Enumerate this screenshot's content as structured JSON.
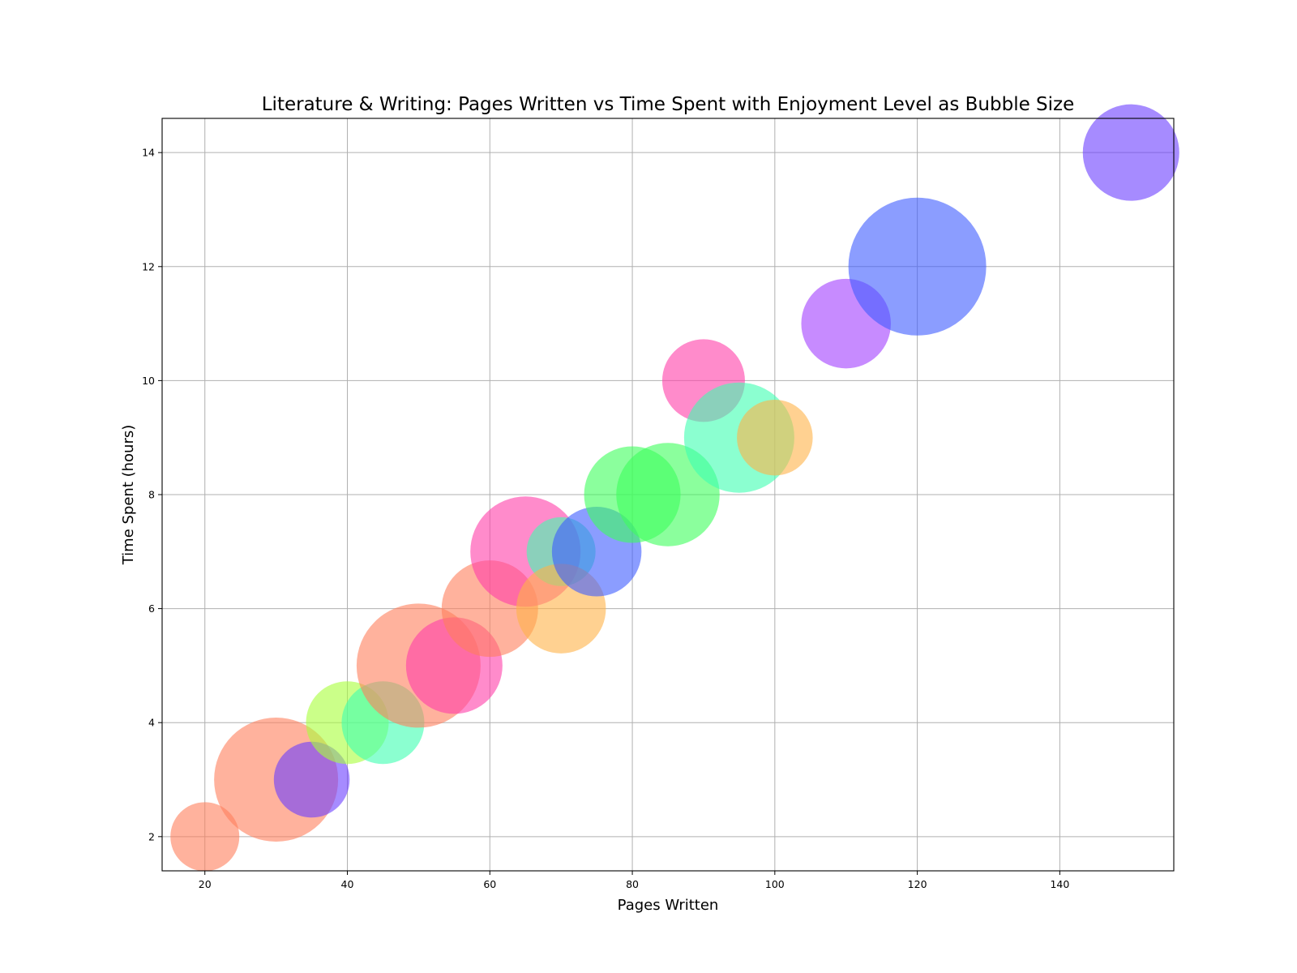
{
  "chart_data": {
    "type": "scatter",
    "title": "Literature & Writing: Pages Written vs Time Spent with Enjoyment Level as Bubble Size",
    "xlabel": "Pages Written",
    "ylabel": "Time Spent (hours)",
    "xlim": [
      14,
      156
    ],
    "ylim": [
      1.4,
      14.6
    ],
    "xticks": [
      20,
      40,
      60,
      80,
      100,
      120,
      140
    ],
    "yticks": [
      2,
      4,
      6,
      8,
      10,
      12,
      14
    ],
    "grid": true,
    "legend": "none",
    "size_encoding": "Enjoyment Level",
    "points": [
      {
        "x": 20,
        "y": 2,
        "size": 5,
        "color": "#ff7f5c"
      },
      {
        "x": 30,
        "y": 3,
        "size": 9,
        "color": "#ff7f5c"
      },
      {
        "x": 35,
        "y": 3,
        "size": 5.5,
        "color": "#6a3dff"
      },
      {
        "x": 40,
        "y": 4,
        "size": 6,
        "color": "#a8ff3a"
      },
      {
        "x": 45,
        "y": 4,
        "size": 6,
        "color": "#3dffb0"
      },
      {
        "x": 50,
        "y": 5,
        "size": 9,
        "color": "#ff7f5c"
      },
      {
        "x": 55,
        "y": 5,
        "size": 7,
        "color": "#ff3da8"
      },
      {
        "x": 60,
        "y": 6,
        "size": 7,
        "color": "#ff7f5c"
      },
      {
        "x": 65,
        "y": 7,
        "size": 8,
        "color": "#ff3da8"
      },
      {
        "x": 70,
        "y": 7,
        "size": 5,
        "color": "#3dffb0"
      },
      {
        "x": 70,
        "y": 6,
        "size": 6.5,
        "color": "#ffb347"
      },
      {
        "x": 75,
        "y": 7,
        "size": 6.5,
        "color": "#3d5cff"
      },
      {
        "x": 80,
        "y": 8,
        "size": 7,
        "color": "#3dff5c"
      },
      {
        "x": 85,
        "y": 8,
        "size": 7.5,
        "color": "#3dff5c"
      },
      {
        "x": 90,
        "y": 10,
        "size": 6,
        "color": "#ff3da8"
      },
      {
        "x": 95,
        "y": 9,
        "size": 8,
        "color": "#3dffb0"
      },
      {
        "x": 100,
        "y": 9,
        "size": 5.5,
        "color": "#ffb347"
      },
      {
        "x": 110,
        "y": 11,
        "size": 6.5,
        "color": "#a23dff"
      },
      {
        "x": 120,
        "y": 12,
        "size": 10,
        "color": "#3d5cff"
      },
      {
        "x": 150,
        "y": 14,
        "size": 7,
        "color": "#6a3dff"
      }
    ]
  }
}
